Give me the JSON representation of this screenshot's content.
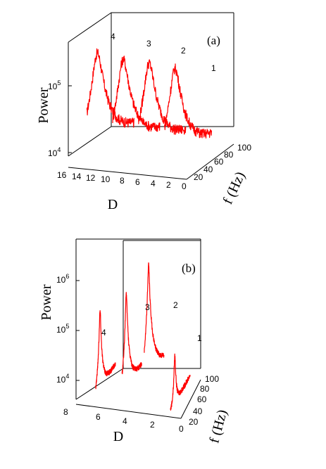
{
  "chart_data": [
    {
      "panel_label": "(a)",
      "type": "line",
      "x_axis": {
        "label": "D",
        "ticks": [
          "16",
          "14",
          "12",
          "10",
          "8",
          "6",
          "4",
          "2",
          "0"
        ],
        "range": [
          16,
          0
        ]
      },
      "z_axis": {
        "label": "f (Hz)",
        "ticks": [
          "0",
          "20",
          "40",
          "60",
          "80",
          "100"
        ],
        "range": [
          0,
          100
        ]
      },
      "y_axis": {
        "label": "Power",
        "scale": "log",
        "ticks": [
          {
            "base": "10",
            "exp": "4",
            "value": 10000
          },
          {
            "base": "10",
            "exp": "5",
            "value": 100000
          }
        ]
      },
      "series": [
        {
          "name": "4",
          "D": 13.5,
          "peak_f": 22,
          "peak_power": 260000
        },
        {
          "name": "3",
          "D": 10.0,
          "peak_f": 22,
          "peak_power": 230000
        },
        {
          "name": "2",
          "D": 6.5,
          "peak_f": 22,
          "peak_power": 220000
        },
        {
          "name": "1",
          "D": 3.0,
          "peak_f": 22,
          "peak_power": 200000
        }
      ]
    },
    {
      "panel_label": "(b)",
      "type": "line",
      "x_axis": {
        "label": "D",
        "ticks": [
          "8",
          "6",
          "4",
          "2",
          "0"
        ],
        "range": [
          8,
          0
        ]
      },
      "z_axis": {
        "label": "f (Hz)",
        "ticks": [
          "0",
          "20",
          "40",
          "60",
          "80",
          "100"
        ],
        "range": [
          0,
          100
        ]
      },
      "y_axis": {
        "label": "Power",
        "scale": "log",
        "ticks": [
          {
            "base": "10",
            "exp": "4",
            "value": 10000
          },
          {
            "base": "10",
            "exp": "5",
            "value": 100000
          },
          {
            "base": "10",
            "exp": "6",
            "value": 1000000
          }
        ]
      },
      "series": [
        {
          "name": "4",
          "D": 6.5,
          "peak_f": 22,
          "peak_power": 300000
        },
        {
          "name": "3",
          "D": 4.5,
          "peak_f": 22,
          "peak_power": 800000
        },
        {
          "name": "2",
          "D": 2.8,
          "peak_f": 22,
          "peak_power": 3500000
        },
        {
          "name": "1",
          "D": 0.8,
          "peak_f": 22,
          "peak_power": 60000
        }
      ]
    }
  ]
}
